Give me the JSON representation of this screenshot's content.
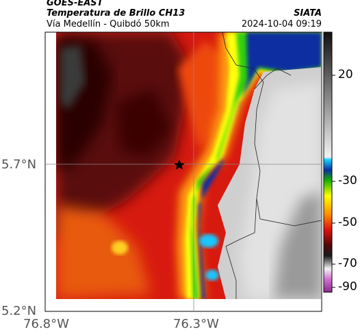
{
  "header": {
    "satellite": "GOES-EAST",
    "product": "Temperatura de Brillo CH13",
    "route": "Vía Medellín - Quibdó 50km",
    "agency": "SIATA",
    "timestamp": "2024-10-04 09:19"
  },
  "axes": {
    "x_ticks": [
      "76.8°W",
      "76.3°W"
    ],
    "y_ticks": [
      "5.7°N",
      "5.2°N"
    ]
  },
  "colorbar": {
    "ticks": [
      "20",
      "-30",
      "-50",
      "-70",
      "-90"
    ]
  },
  "colors": {
    "warm": "#d71a10",
    "dark_red": "#3a0606",
    "yellow_green": "#7cff20",
    "blue": "#0a2fa0",
    "cyan": "#19c8ff",
    "cloud_white": "#e2e2e2"
  }
}
